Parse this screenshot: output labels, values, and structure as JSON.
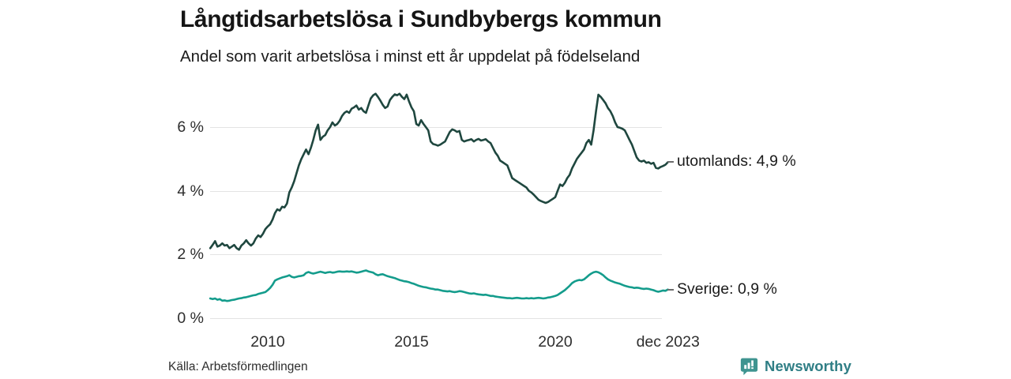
{
  "header": {
    "title": "Långtidsarbetslösa i Sundbybergs kommun",
    "subtitle": "Andel som varit arbetslösa i minst ett år uppdelat på födelseland"
  },
  "chart_data": {
    "type": "line",
    "title": "Långtidsarbetslösa i Sundbybergs kommun",
    "subtitle": "Andel som varit arbetslösa i minst ett år uppdelat på födelseland",
    "xlabel": "",
    "ylabel": "",
    "grid": true,
    "ylim": [
      0,
      7.5
    ],
    "x_start_year": 2008,
    "x_step_months": 1,
    "yticks": [
      {
        "value": 0,
        "label": "0 %"
      },
      {
        "value": 2,
        "label": "2 %"
      },
      {
        "value": 4,
        "label": "4 %"
      },
      {
        "value": 6,
        "label": "6 %"
      }
    ],
    "xticks": [
      {
        "year": 2010,
        "label": "2010"
      },
      {
        "year": 2015,
        "label": "2015"
      },
      {
        "year": 2020,
        "label": "2020"
      },
      {
        "year": 2023.92,
        "label": "dec 2023"
      }
    ],
    "legend_position": "end-of-line",
    "series": [
      {
        "name": "utomlands",
        "end_label": "utomlands: 4,9 %",
        "end_value_pct": 4.9,
        "color": "#1f473f",
        "values": [
          2.2,
          2.3,
          2.42,
          2.25,
          2.28,
          2.35,
          2.28,
          2.3,
          2.2,
          2.25,
          2.3,
          2.2,
          2.15,
          2.28,
          2.35,
          2.45,
          2.35,
          2.28,
          2.35,
          2.5,
          2.6,
          2.55,
          2.65,
          2.8,
          2.88,
          2.95,
          3.1,
          3.3,
          3.42,
          3.38,
          3.5,
          3.48,
          3.6,
          3.95,
          4.1,
          4.3,
          4.55,
          4.8,
          5.0,
          5.15,
          5.3,
          5.15,
          5.35,
          5.6,
          5.9,
          6.08,
          5.6,
          5.7,
          5.75,
          5.9,
          6.0,
          6.15,
          6.05,
          6.1,
          6.2,
          6.35,
          6.45,
          6.5,
          6.45,
          6.58,
          6.62,
          6.68,
          6.55,
          6.6,
          6.5,
          6.45,
          6.68,
          6.9,
          7.0,
          7.05,
          6.95,
          6.83,
          6.7,
          6.6,
          6.65,
          6.85,
          6.95,
          7.03,
          7.0,
          7.05,
          6.95,
          6.88,
          7.02,
          6.8,
          6.62,
          6.5,
          6.1,
          6.05,
          6.22,
          6.1,
          6.0,
          5.9,
          5.55,
          5.47,
          5.45,
          5.42,
          5.45,
          5.5,
          5.55,
          5.7,
          5.85,
          5.93,
          5.9,
          5.85,
          5.88,
          5.6,
          5.55,
          5.58,
          5.6,
          5.62,
          5.55,
          5.6,
          5.63,
          5.58,
          5.6,
          5.62,
          5.55,
          5.5,
          5.35,
          5.2,
          5.1,
          4.95,
          4.9,
          4.85,
          4.8,
          4.6,
          4.4,
          4.35,
          4.3,
          4.25,
          4.2,
          4.15,
          4.1,
          4.0,
          3.95,
          3.88,
          3.8,
          3.72,
          3.68,
          3.65,
          3.62,
          3.65,
          3.7,
          3.75,
          3.8,
          4.0,
          4.2,
          4.15,
          4.25,
          4.4,
          4.5,
          4.7,
          4.85,
          5.0,
          5.1,
          5.2,
          5.3,
          5.5,
          5.6,
          5.45,
          5.9,
          6.5,
          7.02,
          6.95,
          6.85,
          6.75,
          6.6,
          6.5,
          6.35,
          6.15,
          6.0,
          5.98,
          5.95,
          5.9,
          5.75,
          5.6,
          5.45,
          5.25,
          5.05,
          4.95,
          4.92,
          4.95,
          4.88,
          4.9,
          4.85,
          4.88,
          4.72,
          4.7,
          4.75,
          4.78,
          4.82,
          4.9
        ]
      },
      {
        "name": "Sverige",
        "end_label": "Sverige: 0,9 %",
        "end_value_pct": 0.9,
        "color": "#149c8c",
        "values": [
          0.62,
          0.6,
          0.62,
          0.58,
          0.6,
          0.55,
          0.56,
          0.54,
          0.55,
          0.57,
          0.58,
          0.6,
          0.62,
          0.63,
          0.65,
          0.66,
          0.68,
          0.7,
          0.72,
          0.73,
          0.76,
          0.78,
          0.8,
          0.82,
          0.88,
          0.95,
          1.05,
          1.18,
          1.22,
          1.25,
          1.28,
          1.3,
          1.32,
          1.35,
          1.3,
          1.28,
          1.3,
          1.32,
          1.33,
          1.35,
          1.42,
          1.45,
          1.42,
          1.4,
          1.42,
          1.44,
          1.46,
          1.44,
          1.42,
          1.44,
          1.45,
          1.43,
          1.44,
          1.46,
          1.47,
          1.46,
          1.46,
          1.47,
          1.46,
          1.47,
          1.45,
          1.43,
          1.44,
          1.46,
          1.48,
          1.5,
          1.47,
          1.45,
          1.43,
          1.38,
          1.35,
          1.37,
          1.38,
          1.35,
          1.32,
          1.3,
          1.28,
          1.26,
          1.23,
          1.2,
          1.18,
          1.16,
          1.15,
          1.13,
          1.1,
          1.08,
          1.05,
          1.02,
          1.0,
          0.98,
          0.97,
          0.95,
          0.93,
          0.92,
          0.9,
          0.9,
          0.88,
          0.86,
          0.85,
          0.84,
          0.85,
          0.83,
          0.82,
          0.83,
          0.85,
          0.84,
          0.82,
          0.8,
          0.78,
          0.77,
          0.78,
          0.76,
          0.75,
          0.74,
          0.73,
          0.74,
          0.72,
          0.7,
          0.7,
          0.68,
          0.67,
          0.66,
          0.65,
          0.64,
          0.63,
          0.63,
          0.62,
          0.63,
          0.64,
          0.63,
          0.62,
          0.62,
          0.63,
          0.62,
          0.63,
          0.62,
          0.63,
          0.64,
          0.63,
          0.62,
          0.63,
          0.65,
          0.66,
          0.68,
          0.7,
          0.73,
          0.78,
          0.83,
          0.88,
          0.95,
          1.02,
          1.1,
          1.15,
          1.18,
          1.2,
          1.19,
          1.22,
          1.28,
          1.35,
          1.4,
          1.44,
          1.46,
          1.44,
          1.4,
          1.35,
          1.28,
          1.22,
          1.18,
          1.15,
          1.12,
          1.1,
          1.08,
          1.05,
          1.02,
          1.0,
          0.98,
          0.97,
          0.95,
          0.96,
          0.95,
          0.93,
          0.92,
          0.93,
          0.92,
          0.9,
          0.88,
          0.85,
          0.83,
          0.85,
          0.87,
          0.86,
          0.9
        ]
      }
    ]
  },
  "footer": {
    "source": "Källa: Arbetsförmedlingen",
    "brand": "Newsworthy",
    "brand_color": "#2f7e85",
    "brand_icon_color": "#3f9490"
  }
}
